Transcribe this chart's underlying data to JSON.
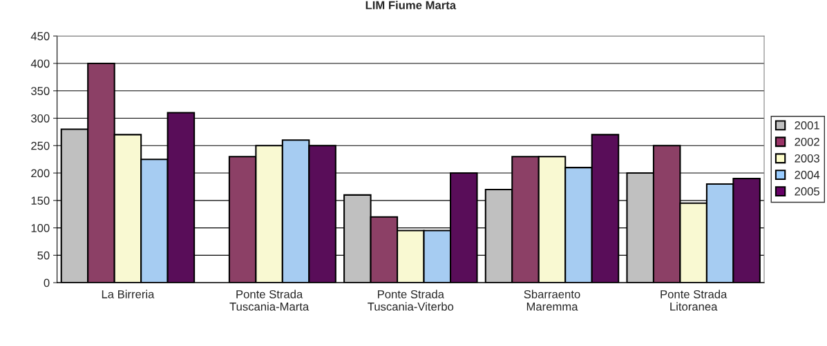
{
  "chart_data": {
    "type": "bar",
    "title": "LIM Fiume Marta",
    "categories": [
      "La Birreria",
      "Ponte Strada\nTuscania-Marta",
      "Ponte Strada\nTuscania-Viterbo",
      "Sbarraento\nMaremma",
      "Ponte Strada\nLitoranea"
    ],
    "series": [
      {
        "name": "2001",
        "color": "#c0c0c0",
        "values": [
          280,
          null,
          160,
          170,
          200
        ]
      },
      {
        "name": "2002",
        "color": "#993366",
        "values": [
          400,
          230,
          120,
          230,
          250
        ]
      },
      {
        "name": "2003",
        "color": "#ffffcc",
        "values": [
          270,
          250,
          95,
          230,
          145
        ]
      },
      {
        "name": "2004",
        "color": "#99ccff",
        "values": [
          225,
          260,
          95,
          210,
          180
        ]
      },
      {
        "name": "2005",
        "color": "#660066",
        "values": [
          310,
          250,
          200,
          270,
          190
        ]
      }
    ],
    "ylim": [
      0,
      450
    ],
    "yticks": [
      0,
      50,
      100,
      150,
      200,
      250,
      300,
      350,
      400,
      450
    ],
    "grid": "y",
    "legend": "right"
  }
}
